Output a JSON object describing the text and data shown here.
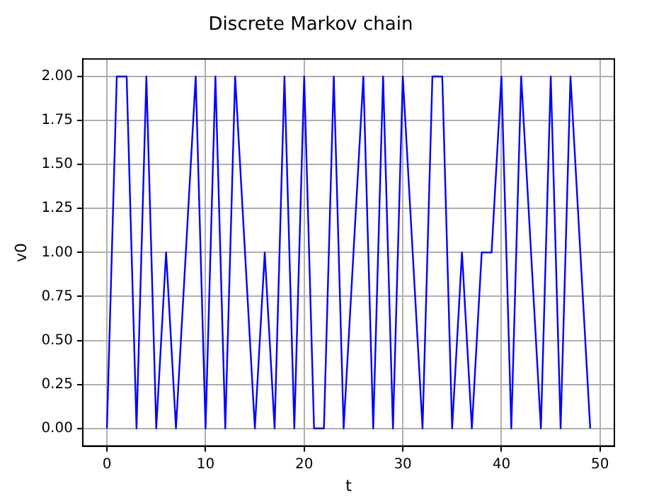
{
  "chart_data": {
    "type": "line",
    "title": "Discrete Markov chain",
    "xlabel": "t",
    "ylabel": "v0",
    "x": [
      0,
      1,
      2,
      3,
      4,
      5,
      6,
      7,
      8,
      9,
      10,
      11,
      12,
      13,
      14,
      15,
      16,
      17,
      18,
      19,
      20,
      21,
      22,
      23,
      24,
      25,
      26,
      27,
      28,
      29,
      30,
      31,
      32,
      33,
      34,
      35,
      36,
      37,
      38,
      39,
      40,
      41,
      42,
      43,
      44,
      45,
      46,
      47,
      48,
      49
    ],
    "series": [
      {
        "color": "#0000ff",
        "values": [
          0,
          2,
          2,
          0,
          2,
          0,
          1,
          0,
          1,
          2,
          0,
          2,
          0,
          2,
          1,
          0,
          1,
          0,
          2,
          0,
          2,
          0,
          0,
          2,
          0,
          1,
          2,
          0,
          2,
          0,
          2,
          1,
          0,
          2,
          2,
          0,
          1,
          0,
          1,
          1,
          2,
          0,
          2,
          1,
          0,
          2,
          0,
          2,
          1,
          0
        ]
      }
    ],
    "xlim": [
      -2.45,
      51.45
    ],
    "xticks": [
      0,
      10,
      20,
      30,
      40,
      50
    ],
    "ylim": [
      -0.1,
      2.1
    ],
    "yticks": [
      {
        "value": 0,
        "label": "0.00"
      },
      {
        "value": 0.25,
        "label": "0.25"
      },
      {
        "value": 0.5,
        "label": "0.50"
      },
      {
        "value": 0.75,
        "label": "0.75"
      },
      {
        "value": 1,
        "label": "1.00"
      },
      {
        "value": 1.25,
        "label": "1.25"
      },
      {
        "value": 1.5,
        "label": "1.50"
      },
      {
        "value": 1.75,
        "label": "1.75"
      },
      {
        "value": 2,
        "label": "2.00"
      }
    ],
    "grid": true,
    "legend": false,
    "marker": "none",
    "line_style": "solid"
  }
}
